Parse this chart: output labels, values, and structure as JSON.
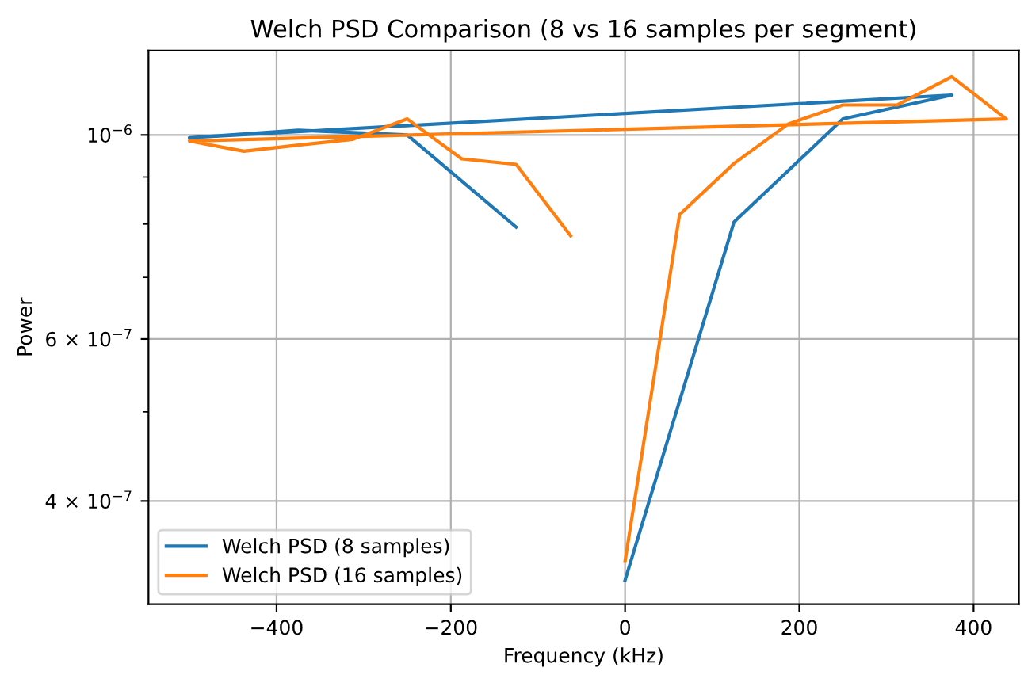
{
  "chart_data": {
    "type": "line",
    "title": "Welch PSD Comparison (8 vs 16 samples per segment)",
    "xlabel": "Frequency (kHz)",
    "ylabel": "Power",
    "series": [
      {
        "name": "Welch PSD (8 samples)",
        "color": "#1f77b4",
        "x": [
          0,
          125,
          250,
          375,
          -500,
          -375,
          -250,
          -125
        ],
        "values": [
          3.28e-07,
          8.04e-07,
          1.041e-06,
          1.105e-06,
          9.93e-07,
          1.012e-06,
          1e-06,
          7.94e-07
        ]
      },
      {
        "name": "Welch PSD (16 samples)",
        "color": "#ff7f0e",
        "x": [
          0,
          62.5,
          125,
          187.5,
          250,
          312.5,
          375,
          437.5,
          -500,
          -437.5,
          -375,
          -312.5,
          -250,
          -187.5,
          -125,
          -62.5
        ],
        "values": [
          3.44e-07,
          8.19e-07,
          9.31e-07,
          1.028e-06,
          1.078e-06,
          1.078e-06,
          1.157e-06,
          1.041e-06,
          9.85e-07,
          9.6e-07,
          9.75e-07,
          9.89e-07,
          1.041e-06,
          9.42e-07,
          9.29e-07,
          7.77e-07
        ]
      }
    ],
    "log": "y",
    "xlim": [
      -547,
      452
    ],
    "ylim": [
      3.09e-07,
      1.235e-06
    ],
    "xticks": [
      {
        "value": -400,
        "label": "−400"
      },
      {
        "value": -200,
        "label": "−200"
      },
      0,
      200,
      400
    ],
    "yticks": [
      {
        "value": 4e-07,
        "label": "4 × 10$^{−7}$"
      },
      {
        "value": 5e-07,
        "label": null
      },
      {
        "value": 6e-07,
        "label": "6 × 10$^{−7}$"
      },
      {
        "value": 7e-07,
        "label": null
      },
      {
        "value": 8e-07,
        "label": null
      },
      {
        "value": 9e-07,
        "label": null
      },
      {
        "value": 1e-06,
        "label": "10$^{−6}$"
      }
    ],
    "grid": true,
    "legend": "bottom left",
    "line_style": "solid",
    "marker": "none"
  }
}
